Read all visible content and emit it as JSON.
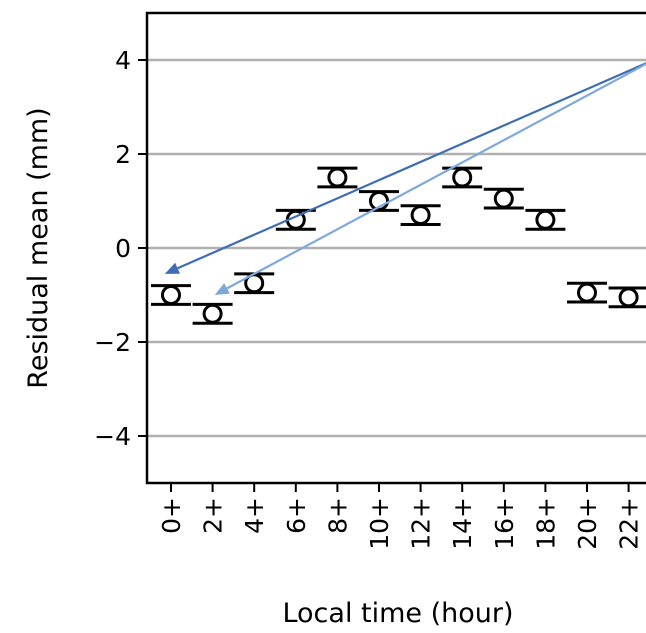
{
  "chart_data": {
    "type": "scatter",
    "xlabel": "Local time (hour)",
    "ylabel": "Residual mean (mm)",
    "ylim": [
      -5,
      5
    ],
    "yticks": [
      4,
      2,
      0,
      -2,
      -4
    ],
    "ytick_labels": [
      "4",
      "2",
      "0",
      "−2",
      "−4"
    ],
    "grid": "horizontal",
    "categories": [
      "0+",
      "2+",
      "4+",
      "6+",
      "8+",
      "10+",
      "12+",
      "14+",
      "16+",
      "18+",
      "20+",
      "22+"
    ],
    "series": [
      {
        "values": [
          -1.0,
          -1.4,
          -0.75,
          0.6,
          1.5,
          1.0,
          0.7,
          1.5,
          1.05,
          0.6,
          -0.95,
          -1.05
        ],
        "error": [
          0.2,
          0.2,
          0.2,
          0.2,
          0.2,
          0.2,
          0.2,
          0.2,
          0.2,
          0.2,
          0.2,
          0.2
        ],
        "marker": "open-circle",
        "color": "#000000"
      }
    ],
    "annotations": [
      {
        "type": "arrow",
        "from": [
          23.2,
          4.0
        ],
        "to": [
          -0.3,
          -0.55
        ],
        "color": "#3f6fb0"
      },
      {
        "type": "arrow",
        "from": [
          23.2,
          4.0
        ],
        "to": [
          2.1,
          -1.0
        ],
        "color": "#7fa8dc"
      }
    ]
  }
}
